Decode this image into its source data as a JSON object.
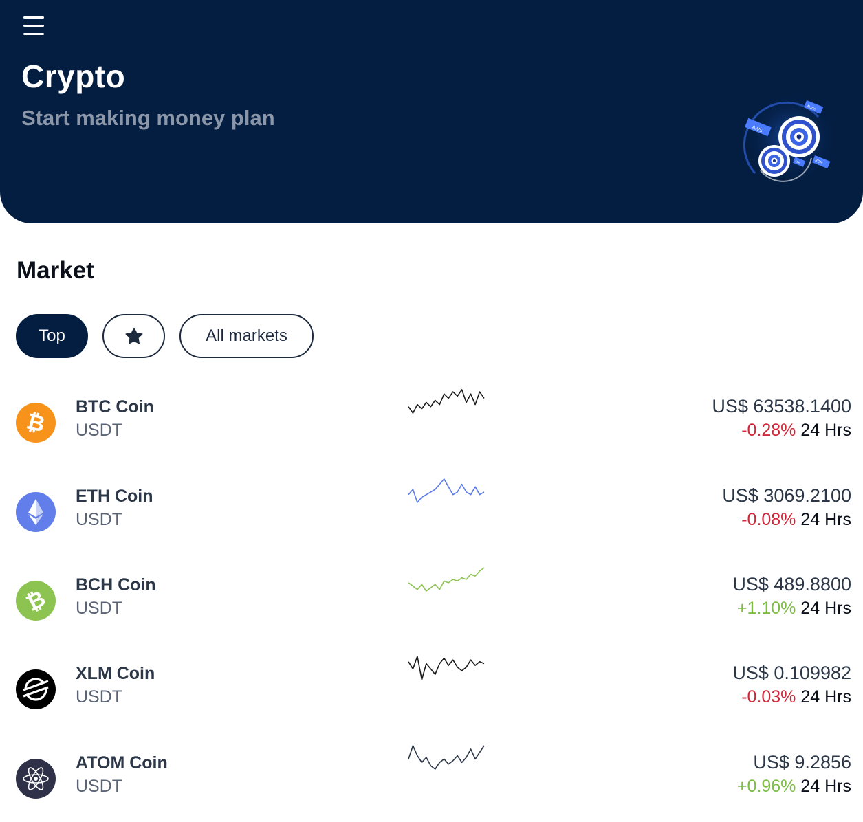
{
  "header": {
    "title": "Crypto",
    "subtitle": "Start making money plan",
    "illustration_labels": [
      "AWS",
      "Node",
      "SSH",
      "RDM"
    ]
  },
  "market": {
    "title": "Market",
    "tabs": [
      {
        "label": "Top",
        "active": true
      },
      {
        "label": "",
        "icon": "star-icon",
        "active": false
      },
      {
        "label": "All markets",
        "active": false
      }
    ]
  },
  "coins": [
    {
      "name": "BTC Coin",
      "quote": "USDT",
      "price": "US$ 63538.1400",
      "change": "-0.28%",
      "period": "24 Hrs",
      "trend": "negative",
      "icon": "bitcoin-icon",
      "icon_color": "#f7931a",
      "spark_color": "#1a1a1a",
      "spark": [
        10,
        13,
        9,
        11,
        8,
        10,
        7,
        9,
        4,
        6,
        3,
        5,
        2,
        8,
        4,
        9,
        3,
        6
      ]
    },
    {
      "name": "ETH Coin",
      "quote": "USDT",
      "price": "US$ 3069.2100",
      "change": "-0.08%",
      "period": "24 Hrs",
      "trend": "negative",
      "icon": "ethereum-icon",
      "icon_color": "#627eea",
      "spark_color": "#5b7be8",
      "spark": [
        9,
        7,
        12,
        10,
        9,
        8,
        7,
        5,
        3,
        6,
        9,
        8,
        5,
        8,
        9,
        6,
        9,
        8
      ]
    },
    {
      "name": "BCH Coin",
      "quote": "USDT",
      "price": "US$ 489.8800",
      "change": "+1.10%",
      "period": "24 Hrs",
      "trend": "positive",
      "icon": "bitcoin-cash-icon",
      "icon_color": "#8dc351",
      "spark_color": "#8dc351",
      "spark": [
        10,
        12,
        14,
        11,
        15,
        13,
        11,
        14,
        9,
        10,
        8,
        9,
        7,
        8,
        5,
        6,
        3,
        1
      ]
    },
    {
      "name": "XLM Coin",
      "quote": "USDT",
      "price": "US$ 0.109982",
      "change": "-0.03%",
      "period": "24 Hrs",
      "trend": "negative",
      "icon": "stellar-icon",
      "icon_color": "#000000",
      "spark_color": "#1a1a1a",
      "spark": [
        5,
        9,
        2,
        15,
        6,
        9,
        12,
        6,
        3,
        7,
        4,
        8,
        10,
        8,
        4,
        7,
        5,
        6
      ]
    },
    {
      "name": "ATOM Coin",
      "quote": "USDT",
      "price": "US$ 9.2856",
      "change": "+0.96%",
      "period": "24 Hrs",
      "trend": "positive",
      "icon": "cosmos-icon",
      "icon_color": "#2e3148",
      "spark_color": "#2c3747",
      "spark": [
        10,
        2,
        8,
        12,
        9,
        14,
        16,
        12,
        10,
        13,
        11,
        8,
        12,
        9,
        4,
        10,
        6,
        2
      ]
    }
  ]
}
